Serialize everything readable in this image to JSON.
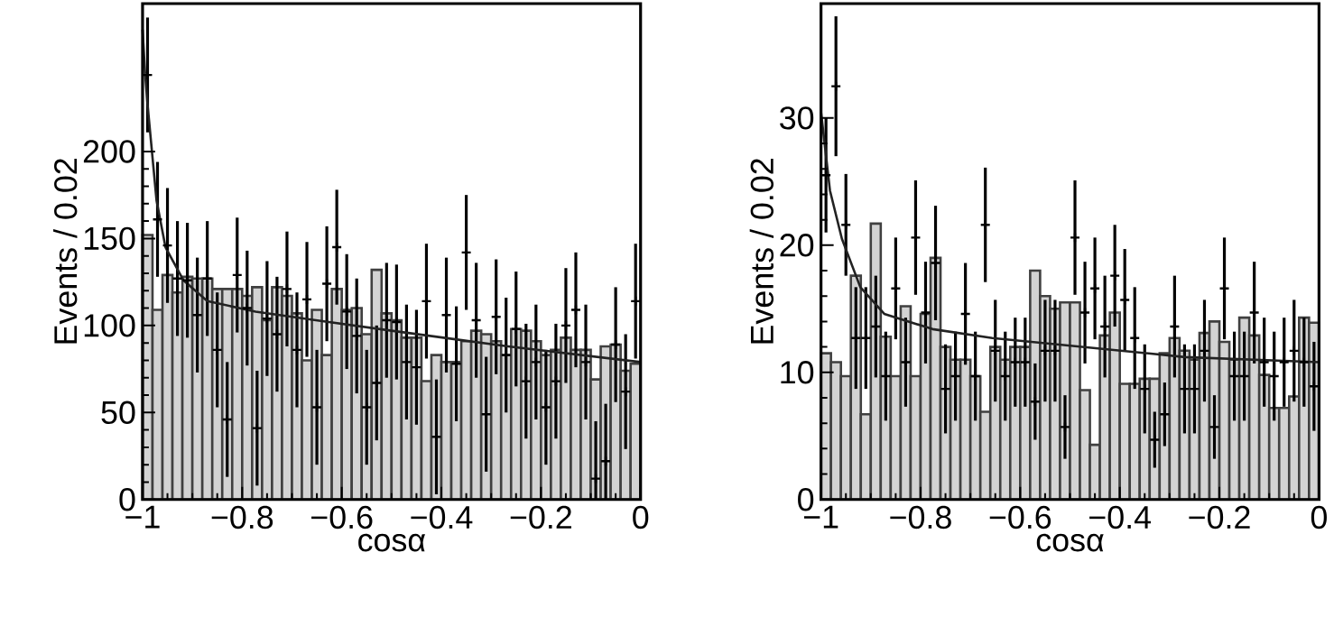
{
  "chart_data": [
    {
      "type": "histogram",
      "xlabel": "cosα",
      "ylabel": "Events / 0.02",
      "xlim": [
        -1,
        0
      ],
      "ylim": [
        0,
        285
      ],
      "xticks": [
        {
          "value": -1,
          "label": "−1"
        },
        {
          "value": -0.8,
          "label": "−0.8"
        },
        {
          "value": -0.6,
          "label": "−0.6"
        },
        {
          "value": -0.4,
          "label": "−0.4"
        },
        {
          "value": -0.2,
          "label": "−0.2"
        },
        0
      ],
      "yticks": [
        0,
        50,
        100,
        150,
        200
      ],
      "bins": [
        -1,
        -0.98,
        -0.96,
        -0.94,
        -0.92,
        -0.9,
        -0.88,
        -0.86,
        -0.84,
        -0.82,
        -0.8,
        -0.78,
        -0.76,
        -0.74,
        -0.72,
        -0.7,
        -0.68,
        -0.66,
        -0.64,
        -0.62,
        -0.6,
        -0.58,
        -0.56,
        -0.54,
        -0.52,
        -0.5,
        -0.48,
        -0.46,
        -0.44,
        -0.42,
        -0.4,
        -0.38,
        -0.36,
        -0.34,
        -0.32,
        -0.3,
        -0.28,
        -0.26,
        -0.24,
        -0.22,
        -0.2,
        -0.18,
        -0.16,
        -0.14,
        -0.12,
        -0.1,
        -0.08,
        -0.06,
        -0.04,
        -0.02,
        0
      ],
      "series": [
        {
          "color": "#d3d3d3",
          "values": [
            152,
            109,
            129,
            119,
            128,
            127,
            127,
            121,
            121,
            121,
            117,
            122,
            103,
            122,
            117,
            107,
            80,
            109,
            83,
            121,
            109,
            110,
            95,
            132,
            107,
            103,
            93,
            93,
            68,
            83,
            79,
            79,
            91,
            97,
            95,
            91,
            83,
            98,
            97,
            91,
            83,
            86,
            93,
            86,
            86,
            69,
            88,
            89,
            74,
            78
          ]
        },
        {
          "type": "scatter",
          "color": "#000000",
          "marker": "cross",
          "x": [
            -0.99,
            -0.97,
            -0.95,
            -0.93,
            -0.91,
            -0.89,
            -0.87,
            -0.85,
            -0.83,
            -0.81,
            -0.79,
            -0.77,
            -0.75,
            -0.73,
            -0.71,
            -0.69,
            -0.67,
            -0.65,
            -0.63,
            -0.61,
            -0.59,
            -0.57,
            -0.55,
            -0.53,
            -0.51,
            -0.49,
            -0.47,
            -0.45,
            -0.43,
            -0.41,
            -0.39,
            -0.37,
            -0.35,
            -0.33,
            -0.31,
            -0.29,
            -0.27,
            -0.25,
            -0.23,
            -0.21,
            -0.19,
            -0.17,
            -0.15,
            -0.13,
            -0.11,
            -0.09,
            -0.07,
            -0.05,
            -0.03,
            -0.01
          ],
          "values": [
            244,
            161,
            146,
            127,
            126,
            106,
            127,
            86,
            46,
            129,
            110,
            41,
            104,
            95,
            121,
            86,
            115,
            53,
            124,
            145,
            108,
            94,
            53,
            67,
            103,
            102,
            79,
            76,
            114,
            36,
            106,
            78,
            142,
            103,
            49,
            105,
            83,
            98,
            68,
            79,
            53,
            68,
            100,
            109,
            79,
            12,
            22,
            89,
            62,
            114
          ],
          "errors": [
            33,
            33,
            33,
            33,
            33,
            33,
            33,
            33,
            33,
            33,
            33,
            33,
            33,
            33,
            33,
            33,
            33,
            33,
            33,
            33,
            33,
            33,
            33,
            33,
            33,
            33,
            33,
            33,
            33,
            33,
            33,
            33,
            33,
            33,
            33,
            33,
            33,
            33,
            33,
            33,
            33,
            33,
            33,
            33,
            33,
            [
              0,
              45
            ],
            [
              0,
              55
            ],
            33,
            33,
            33
          ]
        },
        {
          "type": "line",
          "color": "#222222",
          "x": [
            -1,
            -0.995,
            -0.99,
            -0.972,
            -0.954,
            -0.918,
            -0.87,
            -0.773,
            -0.652,
            -0.5,
            -0.266,
            0
          ],
          "values": [
            270,
            245,
            227,
            172,
            145,
            126,
            114,
            108,
            103,
            97,
            88,
            79
          ]
        }
      ]
    },
    {
      "type": "histogram",
      "xlabel": "cosα",
      "ylabel": "Events / 0.02",
      "xlim": [
        -1,
        0
      ],
      "ylim": [
        0,
        39
      ],
      "xticks": [
        {
          "value": -1,
          "label": "−1"
        },
        {
          "value": -0.8,
          "label": "−0.8"
        },
        {
          "value": -0.6,
          "label": "−0.6"
        },
        {
          "value": -0.4,
          "label": "−0.4"
        },
        {
          "value": -0.2,
          "label": "−0.2"
        },
        0
      ],
      "yticks": [
        0,
        10,
        20,
        30
      ],
      "bins": [
        -1,
        -0.98,
        -0.96,
        -0.94,
        -0.92,
        -0.9,
        -0.88,
        -0.86,
        -0.84,
        -0.82,
        -0.8,
        -0.78,
        -0.76,
        -0.74,
        -0.72,
        -0.7,
        -0.68,
        -0.66,
        -0.64,
        -0.62,
        -0.6,
        -0.58,
        -0.56,
        -0.54,
        -0.52,
        -0.5,
        -0.48,
        -0.46,
        -0.44,
        -0.42,
        -0.4,
        -0.38,
        -0.36,
        -0.34,
        -0.32,
        -0.3,
        -0.28,
        -0.26,
        -0.24,
        -0.22,
        -0.2,
        -0.18,
        -0.16,
        -0.14,
        -0.12,
        -0.1,
        -0.08,
        -0.06,
        -0.04,
        -0.02,
        0
      ],
      "series": [
        {
          "color": "#d3d3d3",
          "values": [
            11.5,
            10.8,
            9.7,
            17.6,
            6.7,
            21.7,
            12.8,
            9.7,
            15.2,
            9.7,
            14.6,
            19,
            12,
            11,
            11,
            9.7,
            6.9,
            12,
            11,
            12,
            12,
            18,
            16,
            15,
            15.5,
            15.5,
            8.6,
            4.3,
            12.9,
            14.7,
            9.1,
            9.1,
            9.5,
            9.5,
            11.5,
            12.7,
            11.7,
            11,
            13.1,
            14,
            12.4,
            11,
            14.3,
            12.9,
            9.8,
            7.2,
            7.2,
            8.1,
            14.3,
            13.9
          ]
        },
        {
          "type": "scatter",
          "color": "#000000",
          "marker": "cross",
          "x": [
            -0.99,
            -0.97,
            -0.95,
            -0.93,
            -0.91,
            -0.89,
            -0.87,
            -0.85,
            -0.83,
            -0.81,
            -0.79,
            -0.77,
            -0.75,
            -0.73,
            -0.71,
            -0.69,
            -0.67,
            -0.65,
            -0.63,
            -0.61,
            -0.59,
            -0.57,
            -0.55,
            -0.53,
            -0.51,
            -0.49,
            -0.47,
            -0.45,
            -0.43,
            -0.41,
            -0.39,
            -0.37,
            -0.35,
            -0.33,
            -0.31,
            -0.29,
            -0.27,
            -0.25,
            -0.23,
            -0.21,
            -0.19,
            -0.17,
            -0.15,
            -0.13,
            -0.11,
            -0.09,
            -0.07,
            -0.05,
            -0.03,
            -0.01
          ],
          "values": [
            25.5,
            32.5,
            21.6,
            12.7,
            12.7,
            13.6,
            9.7,
            16.6,
            10.8,
            20.6,
            14.7,
            18.6,
            8.7,
            9.7,
            14.6,
            9.7,
            21.6,
            11.7,
            9.7,
            10.8,
            10.8,
            7.7,
            11.7,
            11.7,
            5.7,
            20.6,
            14.7,
            16.6,
            13.6,
            17.6,
            15.7,
            12.7,
            8.7,
            4.7,
            6.7,
            13.6,
            8.7,
            8.7,
            11.7,
            5.7,
            16.6,
            9.7,
            9.7,
            14.7,
            10.8,
            9.7,
            10.8,
            11.7,
            10.8,
            8.9
          ],
          "errors": [
            4.5,
            5.5,
            4,
            4,
            4,
            4,
            3.5,
            4,
            3.5,
            4.5,
            4,
            4.5,
            3.5,
            3.5,
            4,
            3.5,
            4.5,
            4,
            3.5,
            3.5,
            3.5,
            3,
            4,
            4,
            2.5,
            4.5,
            4,
            4,
            4,
            4,
            4,
            4,
            3.5,
            2.2,
            2.5,
            4,
            3.5,
            3.5,
            4,
            2.5,
            4,
            3.5,
            3.5,
            4,
            3.5,
            3.5,
            3.5,
            4,
            3.5,
            3.5
          ]
        },
        {
          "type": "line",
          "color": "#222222",
          "x": [
            -1,
            -0.982,
            -0.958,
            -0.921,
            -0.873,
            -0.776,
            -0.656,
            -0.499,
            -0.269,
            0
          ],
          "values": [
            30.5,
            24.3,
            20.5,
            16.7,
            14.6,
            13.4,
            12.7,
            12.1,
            11.2,
            10.8
          ]
        }
      ]
    }
  ]
}
